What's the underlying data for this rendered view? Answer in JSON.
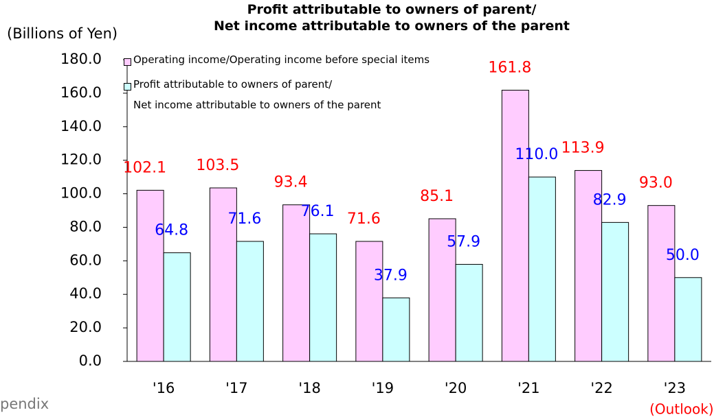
{
  "chart_data": {
    "type": "bar",
    "title": "&\nProfit attributable to owners of parent/\nNet income attributable to owners of the parent",
    "y_axis_label": "(Billions of Yen)",
    "categories": [
      "'16",
      "'17",
      "'18",
      "'19",
      "'20",
      "'21",
      "'22",
      "'23"
    ],
    "category_note": "(Outlook)",
    "footer": "pendix",
    "series": [
      {
        "name": "Operating income/Operating income before special items",
        "color": "#ffccff",
        "label_color": "#ff0000",
        "values": [
          102.1,
          103.5,
          93.4,
          71.6,
          85.1,
          161.8,
          113.9,
          93.0
        ],
        "value_labels": [
          "102.1",
          "103.5",
          "93.4",
          "71.6",
          "85.1",
          "161.8",
          "113.9",
          "93.0"
        ]
      },
      {
        "name": "Profit attributable to owners of parent/\nNet income attributable to owners of the parent",
        "color": "#ccffff",
        "label_color": "#0000ff",
        "values": [
          64.8,
          71.6,
          76.1,
          37.9,
          57.9,
          110.0,
          82.9,
          50.0
        ],
        "value_labels": [
          "64.8",
          "71.6",
          "76.1",
          "37.9",
          "57.9",
          "110.0",
          "82.9",
          "50.0"
        ]
      }
    ],
    "ylim": [
      0,
      180
    ],
    "yticks": [
      {
        "value": 0,
        "label": "0.0"
      },
      {
        "value": 20,
        "label": "20.0"
      },
      {
        "value": 40,
        "label": "40.0"
      },
      {
        "value": 60,
        "label": "60.0"
      },
      {
        "value": 80,
        "label": "80.0"
      },
      {
        "value": 100,
        "label": "100.0"
      },
      {
        "value": 120,
        "label": "120.0"
      },
      {
        "value": 140,
        "label": "140.0"
      },
      {
        "value": 160,
        "label": "160.0"
      },
      {
        "value": 180,
        "label": "180.0"
      }
    ],
    "grid": false,
    "legend": "top-left"
  }
}
